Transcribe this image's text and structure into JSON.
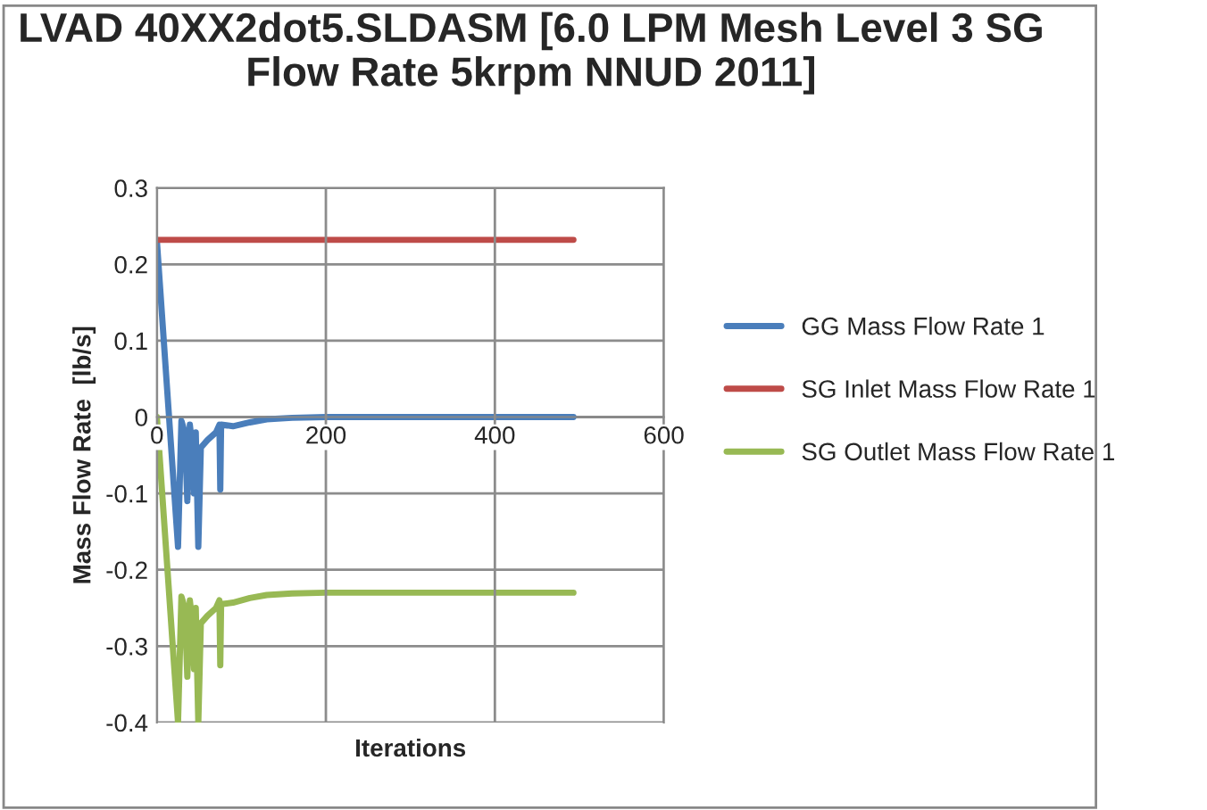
{
  "chart_data": {
    "type": "line",
    "title": "LVAD 40XX2dot5.SLDASM [6.0 LPM Mesh Level 3 SG Flow Rate 5krpm NNUD 2011]",
    "xlabel": "Iterations",
    "ylabel": "Mass Flow Rate  [lb/s]",
    "xlim": [
      0,
      600
    ],
    "xticks": [
      0,
      200,
      400,
      600
    ],
    "ylim": [
      -0.4,
      0.3
    ],
    "yticks": [
      -0.4,
      -0.3,
      -0.2,
      -0.1,
      0,
      0.1,
      0.2,
      0.3
    ],
    "grid": true,
    "legend": "right",
    "marker": "none",
    "line_style": "solid",
    "series": [
      {
        "name": "GG Mass Flow Rate 1",
        "color": "#4a7ebb",
        "x": [
          0,
          25,
          29,
          33,
          36,
          39,
          42,
          44,
          46,
          49,
          52,
          60,
          70,
          74,
          75,
          76,
          90,
          110,
          130,
          160,
          200,
          493
        ],
        "values": [
          0.23,
          -0.17,
          -0.005,
          -0.02,
          -0.11,
          -0.01,
          -0.04,
          -0.1,
          -0.02,
          -0.17,
          -0.04,
          -0.03,
          -0.02,
          -0.01,
          -0.095,
          -0.01,
          -0.012,
          -0.007,
          -0.003,
          -0.001,
          0,
          0
        ]
      },
      {
        "name": "SG Inlet Mass Flow Rate 1",
        "color": "#be4b48",
        "x": [
          0,
          493
        ],
        "values": [
          0.232,
          0.232
        ]
      },
      {
        "name": "SG Outlet Mass Flow Rate 1",
        "color": "#98b954",
        "x": [
          0,
          25,
          29,
          33,
          36,
          39,
          42,
          44,
          46,
          49,
          52,
          60,
          70,
          74,
          75,
          76,
          90,
          110,
          130,
          160,
          200,
          493
        ],
        "values": [
          0,
          -0.4,
          -0.235,
          -0.25,
          -0.34,
          -0.24,
          -0.27,
          -0.33,
          -0.25,
          -0.4,
          -0.27,
          -0.26,
          -0.25,
          -0.24,
          -0.325,
          -0.245,
          -0.243,
          -0.237,
          -0.233,
          -0.231,
          -0.23,
          -0.23
        ]
      }
    ]
  }
}
